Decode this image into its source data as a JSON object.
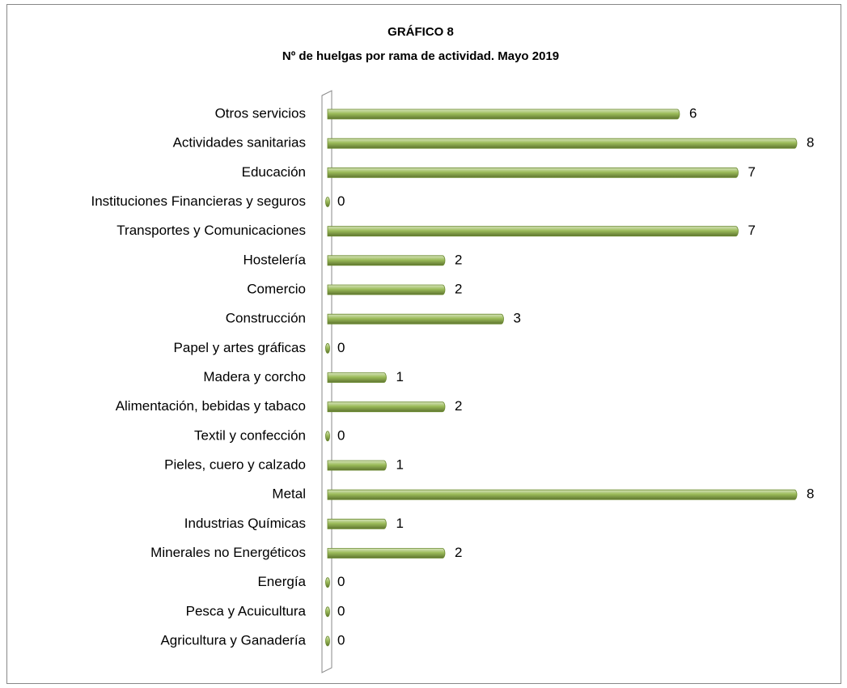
{
  "chart_data": {
    "type": "bar",
    "orientation": "horizontal",
    "title": "GRÁFICO 8",
    "subtitle": "Nº de huelgas por rama de actividad. Mayo 2019",
    "categories": [
      "Otros servicios",
      "Actividades sanitarias",
      "Educación",
      "Instituciones Financieras y seguros",
      "Transportes y Comunicaciones",
      "Hostelería",
      "Comercio",
      "Construcción",
      "Papel y artes gráficas",
      "Madera y corcho",
      "Alimentación, bebidas y tabaco",
      "Textil y confección",
      "Pieles, cuero y calzado",
      "Metal",
      "Industrias Químicas",
      "Minerales no Energéticos",
      "Energía",
      "Pesca y Acuicultura",
      "Agricultura y Ganadería"
    ],
    "values": [
      6,
      8,
      7,
      0,
      7,
      2,
      2,
      3,
      0,
      1,
      2,
      0,
      1,
      8,
      1,
      2,
      0,
      0,
      0
    ],
    "color": "#9bbb59"
  }
}
